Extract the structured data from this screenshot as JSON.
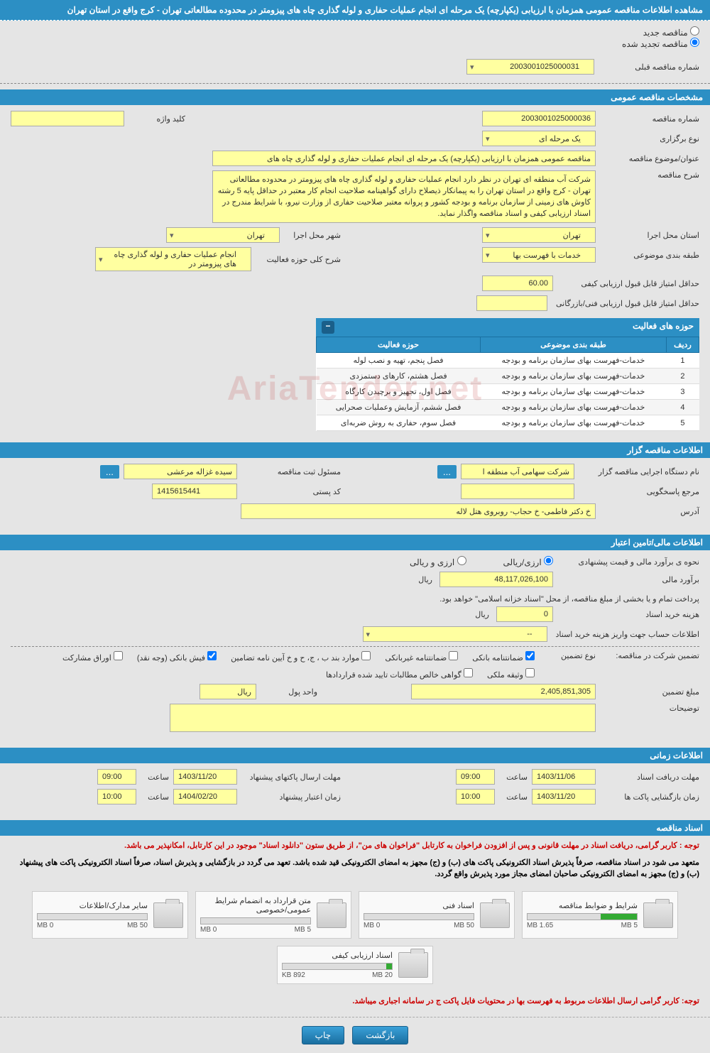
{
  "header": {
    "title": "مشاهده اطلاعات مناقصه عمومی همزمان با ارزیابی (یکپارچه) یک مرحله ای انجام عملیات حفاری و لوله گذاری چاه های پیزومتر در محدوده مطالعاتی تهران - کرج واقع در استان تهران"
  },
  "radios": {
    "new_tender": "مناقصه جدید",
    "renewed_tender": "مناقصه تجدید شده",
    "prev_number_label": "شماره مناقصه قبلی",
    "prev_number": "2003001025000031"
  },
  "sections": {
    "general": "مشخصات مناقصه عمومی",
    "activities": "حوزه های فعالیت",
    "organizer": "اطلاعات مناقصه گزار",
    "financial": "اطلاعات مالی/تامین اعتبار",
    "timing": "اطلاعات زمانی",
    "documents": "اسناد مناقصه"
  },
  "general": {
    "tender_number_label": "شماره مناقصه",
    "tender_number": "2003001025000036",
    "keyword_label": "کلید واژه",
    "holding_type_label": "نوع برگزاری",
    "holding_type": "یک مرحله ای",
    "subject_label": "عنوان/موضوع مناقصه",
    "subject": "مناقصه عمومی همزمان با ارزیابی (یکپارچه) یک مرحله ای انجام عملیات حفاری و لوله گذاری چاه های",
    "description_label": "شرح مناقصه",
    "description": "شرکت آب منطقه ای تهران در نظر دارد انجام عملیات حفاری و لوله گذاری چاه های پیزومتر در محدوده مطالعاتی تهران - کرج واقع در استان تهران را به پیمانکار ذیصلاح دارای گواهینامه صلاحیت انجام کار معتبر در حداقل پایه 5 رشته کاوش های زمینی از سازمان برنامه و بودجه کشور و پروانه معتبر صلاحیت حفاری از وزارت نیرو، با شرایط مندرج در اسناد ارزیابی کیفی و اسناد مناقصه واگذار نماید.",
    "province_label": "استان محل اجرا",
    "province": "تهران",
    "city_label": "شهر محل اجرا",
    "city": "تهران",
    "category_label": "طبقه بندی موضوعی",
    "category": "خدمات با فهرست بها",
    "activity_scope_label": "شرح کلی حوزه فعالیت",
    "activity_scope": "انجام عملیات حفاری و لوله گذاری چاه های پیزومتر در",
    "min_qual_score_label": "حداقل امتیاز قابل قبول ارزیابی کیفی",
    "min_qual_score": "60.00",
    "min_tech_score_label": "حداقل امتیاز قابل قبول ارزیابی فنی/بازرگانی"
  },
  "activity_table": {
    "cols": [
      "ردیف",
      "طبقه بندی موضوعی",
      "حوزه فعالیت"
    ],
    "rows": [
      [
        "1",
        "خدمات-فهرست بهای سازمان برنامه و بودجه",
        "فصل پنجم، تهیه و نصب لوله"
      ],
      [
        "2",
        "خدمات-فهرست بهای سازمان برنامه و بودجه",
        "فصل هشتم، کارهای دستمزدی"
      ],
      [
        "3",
        "خدمات-فهرست بهای سازمان برنامه و بودجه",
        "فصل اول، تجهیز و برچیدن کارگاه"
      ],
      [
        "4",
        "خدمات-فهرست بهای سازمان برنامه و بودجه",
        "فصل ششم، آزمایش وعملیات صحرایی"
      ],
      [
        "5",
        "خدمات-فهرست بهای سازمان برنامه و بودجه",
        "فصل سوم، حفاری به روش ضربه‌ای"
      ]
    ]
  },
  "organizer": {
    "executor_label": "نام دستگاه اجرایی مناقصه گزار",
    "executor": "شرکت سهامی آب منطقه ا",
    "responsible_label": "مسئول ثبت مناقصه",
    "responsible": "سیده غزاله مرعشی",
    "response_ref_label": "مرجع پاسخگویی",
    "postal_code_label": "کد پستی",
    "postal_code": "1415615441",
    "address_label": "آدرس",
    "address": "خ دکتر فاطمی- خ حجاب- روبروی هتل لاله"
  },
  "financial": {
    "estimate_method_label": "نحوه ی برآورد مالی و قیمت پیشنهادی",
    "est_currency": "ارزی/ریالی",
    "est_currency2": "ارزی و ریالی",
    "estimate_label": "برآورد مالی",
    "estimate": "48,117,026,100",
    "currency": "ریال",
    "payment_note": "پرداخت تمام و یا بخشی از مبلغ مناقصه، از محل \"اسناد خزانه اسلامی\" خواهد بود.",
    "doc_cost_label": "هزینه خرید اسناد",
    "doc_cost": "0",
    "deposit_account_label": "اطلاعات حساب جهت واریز هزینه خرید اسناد",
    "deposit_account": "--",
    "guarantee_label": "تضمین شرکت در مناقصه:",
    "guarantee_type_label": "نوع تضمین",
    "checkboxes": {
      "bank_guarantee": "ضمانتنامه بانکی",
      "nonbank_guarantee": "ضمانتنامه غیربانکی",
      "clauses": "موارد بند ب ، ج، ح و خ آیین نامه تضامین",
      "bank_receipt": "فیش بانکی (وجه نقد)",
      "bonds": "اوراق مشارکت",
      "property": "وثیقه ملکی",
      "contract_claims": "گواهی خالص مطالبات تایید شده قراردادها"
    },
    "guarantee_amount_label": "مبلغ تضمین",
    "guarantee_amount": "2,405,851,305",
    "money_unit_label": "واحد پول",
    "money_unit": "ریال",
    "notes_label": "توضیحات"
  },
  "timing": {
    "doc_receive_label": "مهلت دریافت اسناد",
    "doc_receive_date": "1403/11/06",
    "doc_receive_time": "09:00",
    "proposal_submit_label": "مهلت ارسال پاکتهای پیشنهاد",
    "proposal_submit_date": "1403/11/20",
    "proposal_submit_time": "09:00",
    "opening_label": "زمان بازگشایی پاکت ها",
    "opening_date": "1403/11/20",
    "opening_time": "10:00",
    "validity_label": "زمان اعتبار پیشنهاد",
    "validity_date": "1404/02/20",
    "validity_time": "10:00",
    "time_label": "ساعت"
  },
  "documents": {
    "notice1": "توجه : کاربر گرامی، دریافت اسناد در مهلت قانونی و پس از افزودن فراخوان به کارتابل \"فراخوان های من\"، از طریق ستون \"دانلود اسناد\" موجود در این کارتابل، امکانپذیر می باشد.",
    "notice2": "متعهد می شود در اسناد مناقصه، صرفاً پذیرش اسناد الکترونیکی پاکت های (ب) و (ج) مجهز به امضای الکترونیکی قید شده باشد. تعهد می گردد در بازگشایی و پذیرش اسناد، صرفاً اسناد الکترونیکی پاکت های پیشنهاد (ب) و (ج) مجهز به امضای الکترونیکی صاحبان امضای مجاز مورد پذیرش واقع گردد.",
    "files": [
      {
        "title": "شرایط و ضوابط مناقصه",
        "used": "1.65 MB",
        "max": "5 MB",
        "pct": 33
      },
      {
        "title": "اسناد فنی",
        "used": "0 MB",
        "max": "50 MB",
        "pct": 0
      },
      {
        "title": "متن قرارداد به انضمام شرایط عمومی/خصوصی",
        "used": "0 MB",
        "max": "5 MB",
        "pct": 0
      },
      {
        "title": "سایر مدارک/اطلاعات",
        "used": "0 MB",
        "max": "50 MB",
        "pct": 0
      },
      {
        "title": "اسناد ارزیابی کیفی",
        "used": "892 KB",
        "max": "20 MB",
        "pct": 5
      }
    ],
    "notice3": "توجه: کاربر گرامی ارسال اطلاعات مربوط به فهرست بها در محتویات فایل پاکت ج در سامانه اجباری میباشد."
  },
  "buttons": {
    "back": "بازگشت",
    "print": "چاپ"
  },
  "watermark": "AriaTender.net",
  "colors": {
    "header_bg": "#2c8fc4",
    "field_bg": "#ffffa0"
  }
}
